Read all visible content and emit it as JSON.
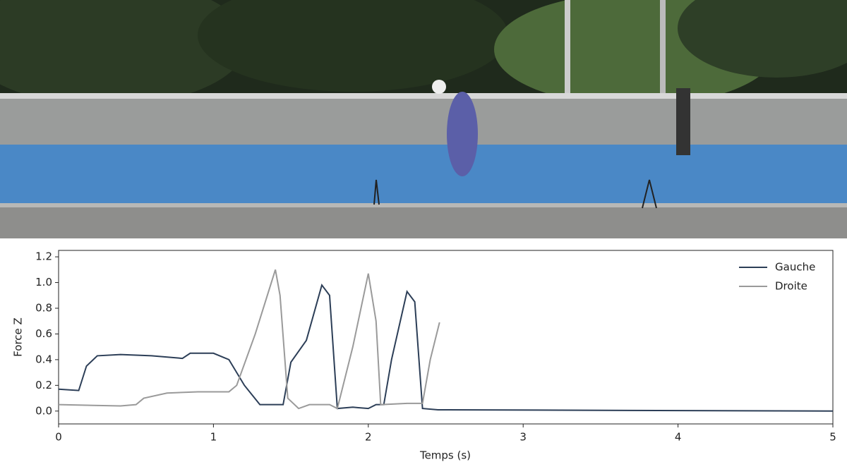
{
  "chart_data": {
    "type": "line",
    "x_label": "Temps (s)",
    "y_label": "Force Z",
    "xlim": [
      0,
      5
    ],
    "ylim": [
      -0.1,
      1.25
    ],
    "xticks": [
      0,
      1,
      2,
      3,
      4,
      5
    ],
    "yticks": [
      {
        "value": 0,
        "label": "0.0"
      },
      {
        "value": 0.2,
        "label": "0.2"
      },
      {
        "value": 0.4,
        "label": "0.4"
      },
      {
        "value": 0.6,
        "label": "0.6"
      },
      {
        "value": 0.8,
        "label": "0.8"
      },
      {
        "value": 1,
        "label": "1.0"
      },
      {
        "value": 1.2,
        "label": "1.2"
      }
    ],
    "legend": "upper right",
    "series": [
      {
        "name": "Gauche",
        "color": "#2c3e57",
        "x": [
          0,
          0.13,
          0.18,
          0.25,
          0.4,
          0.6,
          0.8,
          0.85,
          1.0,
          1.1,
          1.2,
          1.3,
          1.45,
          1.5,
          1.6,
          1.7,
          1.75,
          1.8,
          1.9,
          2.0,
          2.05,
          2.1,
          2.15,
          2.25,
          2.3,
          2.35,
          2.45,
          5
        ],
        "values": [
          0.17,
          0.16,
          0.35,
          0.43,
          0.44,
          0.43,
          0.41,
          0.45,
          0.45,
          0.4,
          0.2,
          0.05,
          0.05,
          0.38,
          0.55,
          0.98,
          0.9,
          0.02,
          0.03,
          0.02,
          0.05,
          0.05,
          0.4,
          0.93,
          0.85,
          0.02,
          0.01,
          0
        ]
      },
      {
        "name": "Droite",
        "color": "#9a9a9a",
        "x": [
          0,
          0.4,
          0.5,
          0.55,
          0.7,
          0.9,
          1.1,
          1.15,
          1.27,
          1.4,
          1.43,
          1.48,
          1.55,
          1.62,
          1.75,
          1.8,
          1.9,
          2.0,
          2.05,
          2.08,
          2.25,
          2.35,
          2.4,
          2.46
        ],
        "values": [
          0.05,
          0.04,
          0.05,
          0.1,
          0.14,
          0.15,
          0.15,
          0.2,
          0.6,
          1.1,
          0.9,
          0.1,
          0.02,
          0.05,
          0.05,
          0.02,
          0.5,
          1.07,
          0.7,
          0.05,
          0.06,
          0.06,
          0.4,
          0.69
        ]
      }
    ]
  }
}
